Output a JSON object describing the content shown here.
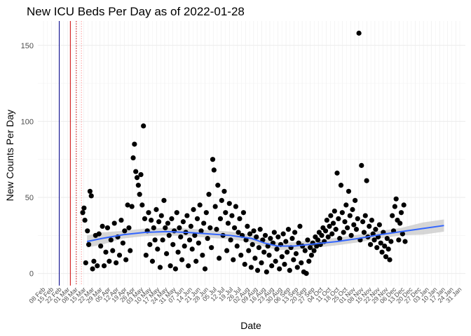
{
  "chart_data": {
    "type": "scatter",
    "title": "New ICU Beds Per Day as of 2022-01-28",
    "xlabel": "Date",
    "ylabel": "New Counts Per Day",
    "ylim": [
      -8,
      166
    ],
    "xlim_index": [
      0,
      100
    ],
    "y_ticks": [
      0,
      50,
      100,
      150
    ],
    "grid": true,
    "legend": "none",
    "colors": {
      "points": "#000000",
      "smooth_line": "#3366ff",
      "smooth_band": "#c8c8c8",
      "vline_blue": "#00008b",
      "vline_red": "#cc0000",
      "grid_major": "#ebebeb",
      "grid_minor": "#f2f2f2"
    },
    "vlines": [
      {
        "x": 5.0,
        "color": "#00008b",
        "style": "solid"
      },
      {
        "x": 7.6,
        "color": "#cc0000",
        "style": "solid"
      },
      {
        "x": 9.0,
        "color": "#cc0000",
        "style": "dotted"
      },
      {
        "x": 10.2,
        "color": "#ff9999",
        "style": "dotted"
      }
    ],
    "smooth": [
      {
        "x": 11.5,
        "y": 21
      },
      {
        "x": 15,
        "y": 23
      },
      {
        "x": 20,
        "y": 25.5
      },
      {
        "x": 25,
        "y": 27
      },
      {
        "x": 30,
        "y": 27.5
      },
      {
        "x": 35,
        "y": 27
      },
      {
        "x": 40,
        "y": 26
      },
      {
        "x": 45,
        "y": 25
      },
      {
        "x": 50,
        "y": 23
      },
      {
        "x": 53,
        "y": 20
      },
      {
        "x": 56,
        "y": 18
      },
      {
        "x": 60,
        "y": 18
      },
      {
        "x": 65,
        "y": 19.5
      },
      {
        "x": 70,
        "y": 21
      },
      {
        "x": 75,
        "y": 23
      },
      {
        "x": 80,
        "y": 25.5
      },
      {
        "x": 85,
        "y": 27.5
      },
      {
        "x": 90,
        "y": 29.5
      },
      {
        "x": 95,
        "y": 31.5
      }
    ],
    "points": [
      {
        "x": 10.5,
        "y": 40
      },
      {
        "x": 10.8,
        "y": 43
      },
      {
        "x": 11.0,
        "y": 35
      },
      {
        "x": 11.2,
        "y": 7
      },
      {
        "x": 11.6,
        "y": 28
      },
      {
        "x": 11.9,
        "y": 19
      },
      {
        "x": 12.2,
        "y": 54
      },
      {
        "x": 12.5,
        "y": 51
      },
      {
        "x": 12.8,
        "y": 3
      },
      {
        "x": 13.1,
        "y": 8
      },
      {
        "x": 13.5,
        "y": 25
      },
      {
        "x": 13.9,
        "y": 5
      },
      {
        "x": 14.3,
        "y": 26
      },
      {
        "x": 14.7,
        "y": 18
      },
      {
        "x": 15.1,
        "y": 31
      },
      {
        "x": 15.5,
        "y": 5
      },
      {
        "x": 15.9,
        "y": 14
      },
      {
        "x": 16.3,
        "y": 30
      },
      {
        "x": 16.7,
        "y": 8
      },
      {
        "x": 17.1,
        "y": 22
      },
      {
        "x": 17.5,
        "y": 15
      },
      {
        "x": 17.9,
        "y": 33
      },
      {
        "x": 18.3,
        "y": 7
      },
      {
        "x": 18.7,
        "y": 24
      },
      {
        "x": 19.1,
        "y": 12
      },
      {
        "x": 19.5,
        "y": 35
      },
      {
        "x": 19.9,
        "y": 20
      },
      {
        "x": 20.3,
        "y": 28
      },
      {
        "x": 20.6,
        "y": 9
      },
      {
        "x": 21.0,
        "y": 45
      },
      {
        "x": 21.3,
        "y": 30
      },
      {
        "x": 21.6,
        "y": 15
      },
      {
        "x": 22.0,
        "y": 44
      },
      {
        "x": 22.3,
        "y": 76
      },
      {
        "x": 22.6,
        "y": 85
      },
      {
        "x": 22.9,
        "y": 67
      },
      {
        "x": 23.2,
        "y": 63
      },
      {
        "x": 23.5,
        "y": 58
      },
      {
        "x": 23.8,
        "y": 52
      },
      {
        "x": 24.1,
        "y": 65
      },
      {
        "x": 24.4,
        "y": 45
      },
      {
        "x": 24.7,
        "y": 97
      },
      {
        "x": 25.0,
        "y": 36
      },
      {
        "x": 25.3,
        "y": 12
      },
      {
        "x": 25.6,
        "y": 28
      },
      {
        "x": 25.9,
        "y": 40
      },
      {
        "x": 26.2,
        "y": 19
      },
      {
        "x": 26.5,
        "y": 35
      },
      {
        "x": 26.8,
        "y": 8
      },
      {
        "x": 27.1,
        "y": 30
      },
      {
        "x": 27.4,
        "y": 22
      },
      {
        "x": 27.7,
        "y": 42
      },
      {
        "x": 28.0,
        "y": 16
      },
      {
        "x": 28.3,
        "y": 34
      },
      {
        "x": 28.6,
        "y": 4
      },
      {
        "x": 28.9,
        "y": 38
      },
      {
        "x": 29.2,
        "y": 22
      },
      {
        "x": 29.5,
        "y": 48
      },
      {
        "x": 29.8,
        "y": 30
      },
      {
        "x": 30.1,
        "y": 13
      },
      {
        "x": 30.4,
        "y": 33
      },
      {
        "x": 30.7,
        "y": 25
      },
      {
        "x": 31.0,
        "y": 5
      },
      {
        "x": 31.3,
        "y": 36
      },
      {
        "x": 31.6,
        "y": 19
      },
      {
        "x": 31.9,
        "y": 28
      },
      {
        "x": 32.2,
        "y": 3
      },
      {
        "x": 32.5,
        "y": 40
      },
      {
        "x": 32.8,
        "y": 14
      },
      {
        "x": 33.1,
        "y": 30
      },
      {
        "x": 33.4,
        "y": 24
      },
      {
        "x": 33.7,
        "y": 9
      },
      {
        "x": 34.0,
        "y": 34
      },
      {
        "x": 34.3,
        "y": 18
      },
      {
        "x": 34.6,
        "y": 27
      },
      {
        "x": 34.9,
        "y": 38
      },
      {
        "x": 35.2,
        "y": 5
      },
      {
        "x": 35.5,
        "y": 22
      },
      {
        "x": 35.8,
        "y": 31
      },
      {
        "x": 36.1,
        "y": 16
      },
      {
        "x": 36.4,
        "y": 42
      },
      {
        "x": 36.7,
        "y": 25
      },
      {
        "x": 37.0,
        "y": 8
      },
      {
        "x": 37.3,
        "y": 36
      },
      {
        "x": 37.6,
        "y": 20
      },
      {
        "x": 37.9,
        "y": 45
      },
      {
        "x": 38.2,
        "y": 28
      },
      {
        "x": 38.5,
        "y": 12
      },
      {
        "x": 38.8,
        "y": 33
      },
      {
        "x": 39.1,
        "y": 3
      },
      {
        "x": 39.4,
        "y": 40
      },
      {
        "x": 39.7,
        "y": 23
      },
      {
        "x": 40.0,
        "y": 52
      },
      {
        "x": 40.3,
        "y": 30
      },
      {
        "x": 40.6,
        "y": 17
      },
      {
        "x": 40.9,
        "y": 75
      },
      {
        "x": 41.2,
        "y": 68
      },
      {
        "x": 41.5,
        "y": 44
      },
      {
        "x": 41.8,
        "y": 29
      },
      {
        "x": 42.1,
        "y": 58
      },
      {
        "x": 42.4,
        "y": 10
      },
      {
        "x": 42.7,
        "y": 36
      },
      {
        "x": 43.0,
        "y": 48
      },
      {
        "x": 43.3,
        "y": 25
      },
      {
        "x": 43.6,
        "y": 54
      },
      {
        "x": 43.9,
        "y": 40
      },
      {
        "x": 44.2,
        "y": 15
      },
      {
        "x": 44.5,
        "y": 33
      },
      {
        "x": 44.8,
        "y": 46
      },
      {
        "x": 45.1,
        "y": 22
      },
      {
        "x": 45.4,
        "y": 38
      },
      {
        "x": 45.7,
        "y": 9
      },
      {
        "x": 46.0,
        "y": 30
      },
      {
        "x": 46.3,
        "y": 44
      },
      {
        "x": 46.6,
        "y": 18
      },
      {
        "x": 46.9,
        "y": 27
      },
      {
        "x": 47.2,
        "y": 36
      },
      {
        "x": 47.5,
        "y": 12
      },
      {
        "x": 47.8,
        "y": 25
      },
      {
        "x": 48.1,
        "y": 40
      },
      {
        "x": 48.4,
        "y": 6
      },
      {
        "x": 48.7,
        "y": 22
      },
      {
        "x": 49.0,
        "y": 31
      },
      {
        "x": 49.3,
        "y": 15
      },
      {
        "x": 49.6,
        "y": 26
      },
      {
        "x": 49.9,
        "y": 4
      },
      {
        "x": 50.2,
        "y": 19
      },
      {
        "x": 50.5,
        "y": 28
      },
      {
        "x": 50.8,
        "y": 10
      },
      {
        "x": 51.1,
        "y": 24
      },
      {
        "x": 51.4,
        "y": 2
      },
      {
        "x": 51.7,
        "y": 17
      },
      {
        "x": 52.0,
        "y": 29
      },
      {
        "x": 52.3,
        "y": 7
      },
      {
        "x": 52.6,
        "y": 22
      },
      {
        "x": 52.9,
        "y": 14
      },
      {
        "x": 53.2,
        "y": 25
      },
      {
        "x": 53.5,
        "y": 1
      },
      {
        "x": 53.8,
        "y": 18
      },
      {
        "x": 54.1,
        "y": 12
      },
      {
        "x": 54.4,
        "y": 23
      },
      {
        "x": 54.7,
        "y": 5
      },
      {
        "x": 55.0,
        "y": 20
      },
      {
        "x": 55.3,
        "y": 27
      },
      {
        "x": 55.6,
        "y": 8
      },
      {
        "x": 55.9,
        "y": 16
      },
      {
        "x": 56.2,
        "y": 24
      },
      {
        "x": 56.5,
        "y": 3
      },
      {
        "x": 56.8,
        "y": 19
      },
      {
        "x": 57.1,
        "y": 11
      },
      {
        "x": 57.4,
        "y": 26
      },
      {
        "x": 57.7,
        "y": 6
      },
      {
        "x": 58.0,
        "y": 21
      },
      {
        "x": 58.3,
        "y": 14
      },
      {
        "x": 58.6,
        "y": 29
      },
      {
        "x": 58.9,
        "y": 2
      },
      {
        "x": 59.2,
        "y": 17
      },
      {
        "x": 59.5,
        "y": 23
      },
      {
        "x": 59.8,
        "y": 9
      },
      {
        "x": 60.1,
        "y": 27
      },
      {
        "x": 60.4,
        "y": 13
      },
      {
        "x": 60.7,
        "y": 4
      },
      {
        "x": 61.0,
        "y": 20
      },
      {
        "x": 61.3,
        "y": 31
      },
      {
        "x": 61.6,
        "y": 7
      },
      {
        "x": 61.9,
        "y": 18
      },
      {
        "x": 62.2,
        "y": 1
      },
      {
        "x": 62.5,
        "y": 15
      },
      {
        "x": 62.8,
        "y": 0
      },
      {
        "x": 63.1,
        "y": 22
      },
      {
        "x": 63.4,
        "y": 8
      },
      {
        "x": 63.7,
        "y": 17
      },
      {
        "x": 64.0,
        "y": 12
      },
      {
        "x": 64.3,
        "y": 20
      },
      {
        "x": 64.6,
        "y": 15
      },
      {
        "x": 64.9,
        "y": 24
      },
      {
        "x": 65.2,
        "y": 18
      },
      {
        "x": 65.5,
        "y": 22
      },
      {
        "x": 65.8,
        "y": 27
      },
      {
        "x": 66.1,
        "y": 19
      },
      {
        "x": 66.4,
        "y": 25
      },
      {
        "x": 66.7,
        "y": 30
      },
      {
        "x": 67.0,
        "y": 21
      },
      {
        "x": 67.3,
        "y": 28
      },
      {
        "x": 67.6,
        "y": 35
      },
      {
        "x": 67.9,
        "y": 24
      },
      {
        "x": 68.2,
        "y": 31
      },
      {
        "x": 68.5,
        "y": 38
      },
      {
        "x": 68.8,
        "y": 26
      },
      {
        "x": 69.1,
        "y": 33
      },
      {
        "x": 69.4,
        "y": 41
      },
      {
        "x": 69.7,
        "y": 29
      },
      {
        "x": 70.0,
        "y": 66
      },
      {
        "x": 70.3,
        "y": 36
      },
      {
        "x": 70.6,
        "y": 23
      },
      {
        "x": 70.9,
        "y": 58
      },
      {
        "x": 71.2,
        "y": 40
      },
      {
        "x": 71.5,
        "y": 27
      },
      {
        "x": 71.8,
        "y": 34
      },
      {
        "x": 72.1,
        "y": 45
      },
      {
        "x": 72.4,
        "y": 30
      },
      {
        "x": 72.7,
        "y": 54
      },
      {
        "x": 73.0,
        "y": 38
      },
      {
        "x": 73.3,
        "y": 25
      },
      {
        "x": 73.6,
        "y": 42
      },
      {
        "x": 73.9,
        "y": 32
      },
      {
        "x": 74.2,
        "y": 48
      },
      {
        "x": 74.5,
        "y": 29
      },
      {
        "x": 74.8,
        "y": 36
      },
      {
        "x": 75.1,
        "y": 158
      },
      {
        "x": 75.4,
        "y": 22
      },
      {
        "x": 75.7,
        "y": 71
      },
      {
        "x": 76.0,
        "y": 34
      },
      {
        "x": 76.3,
        "y": 27
      },
      {
        "x": 76.6,
        "y": 38
      },
      {
        "x": 76.9,
        "y": 61
      },
      {
        "x": 77.2,
        "y": 24
      },
      {
        "x": 77.5,
        "y": 31
      },
      {
        "x": 77.8,
        "y": 19
      },
      {
        "x": 78.1,
        "y": 35
      },
      {
        "x": 78.4,
        "y": 26
      },
      {
        "x": 78.7,
        "y": 22
      },
      {
        "x": 79.0,
        "y": 29
      },
      {
        "x": 79.3,
        "y": 17
      },
      {
        "x": 79.6,
        "y": 24
      },
      {
        "x": 79.9,
        "y": 32
      },
      {
        "x": 80.2,
        "y": 20
      },
      {
        "x": 80.5,
        "y": 14
      },
      {
        "x": 80.8,
        "y": 27
      },
      {
        "x": 81.1,
        "y": 18
      },
      {
        "x": 81.4,
        "y": 11
      },
      {
        "x": 81.7,
        "y": 23
      },
      {
        "x": 82.0,
        "y": 16
      },
      {
        "x": 82.3,
        "y": 9
      },
      {
        "x": 82.6,
        "y": 21
      },
      {
        "x": 82.9,
        "y": 38
      },
      {
        "x": 83.2,
        "y": 28
      },
      {
        "x": 83.5,
        "y": 44
      },
      {
        "x": 83.8,
        "y": 49
      },
      {
        "x": 84.1,
        "y": 35
      },
      {
        "x": 84.4,
        "y": 22
      },
      {
        "x": 84.7,
        "y": 33
      },
      {
        "x": 85.0,
        "y": 40
      },
      {
        "x": 85.3,
        "y": 26
      },
      {
        "x": 85.6,
        "y": 45
      },
      {
        "x": 85.9,
        "y": 21
      }
    ],
    "x_tick_labels": [
      "08 Feb",
      "15 Feb",
      "22 Feb",
      "01 Mar",
      "08 Mar",
      "15 Mar",
      "22 Mar",
      "29 Mar",
      "05 Apr",
      "12 Apr",
      "19 Apr",
      "26 Apr",
      "03 May",
      "10 May",
      "17 May",
      "24 May",
      "31 May",
      "07 Jun",
      "14 Jun",
      "21 Jun",
      "28 Jun",
      "05 Jul",
      "12 Jul",
      "19 Jul",
      "26 Jul",
      "02 Aug",
      "09 Aug",
      "16 Aug",
      "23 Aug",
      "30 Aug",
      "06 Sep",
      "13 Sep",
      "20 Sep",
      "27 Sep",
      "04 Oct",
      "11 Oct",
      "18 Oct",
      "25 Oct",
      "01 Nov",
      "08 Nov",
      "15 Nov",
      "22 Nov",
      "29 Nov",
      "06 Dec",
      "13 Dec",
      "20 Dec",
      "27 Dec",
      "03 Jan",
      "10 Jan",
      "17 Jan",
      "24 Jan",
      "31 Jan"
    ]
  }
}
